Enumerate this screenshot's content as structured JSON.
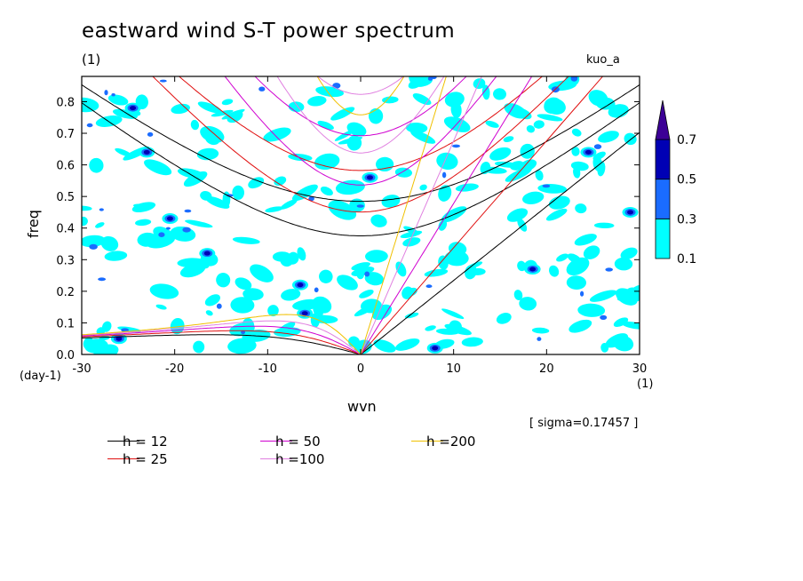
{
  "figure": {
    "title": "eastward wind S-T power spectrum",
    "units_label": "(1)",
    "run_label": "kuo_a",
    "sigma_label": "[ sigma=0.17457 ]",
    "xunits_label": "(1)",
    "yunits_label": "(day-1)"
  },
  "chart_data": {
    "type": "contour",
    "title": "eastward wind S-T power spectrum",
    "xlabel": "wvn",
    "ylabel": "freq",
    "xlim": [
      -30,
      30
    ],
    "ylim": [
      0,
      0.88
    ],
    "x_ticks": [
      -30,
      -20,
      -10,
      0,
      10,
      20,
      30
    ],
    "y_ticks": [
      0.0,
      0.1,
      0.2,
      0.3,
      0.4,
      0.5,
      0.6,
      0.7,
      0.8
    ],
    "colorbar": {
      "levels": [
        0.1,
        0.3,
        0.5,
        0.7
      ],
      "colors": [
        "#00ffff",
        "#1a6cff",
        "#0000b4",
        "#3c0096"
      ],
      "extend": "max"
    },
    "dispersion_curves": [
      {
        "name": "h = 12",
        "h": 12,
        "color": "#000000"
      },
      {
        "name": "h = 25",
        "h": 25,
        "color": "#e01010"
      },
      {
        "name": "h = 50",
        "h": 50,
        "color": "#d000d0"
      },
      {
        "name": "h =100",
        "h": 100,
        "color": "#e080e0"
      },
      {
        "name": "h =200",
        "h": 200,
        "color": "#f0c000"
      }
    ],
    "shaded_regions": [
      {
        "x": -24.5,
        "y": 0.78,
        "level": 0.5
      },
      {
        "x": -6.5,
        "y": 0.22,
        "level": 0.5
      },
      {
        "x": -6.0,
        "y": 0.13,
        "level": 0.5
      },
      {
        "x": 1.0,
        "y": 0.56,
        "level": 0.5
      },
      {
        "x": 8.0,
        "y": 0.02,
        "level": 0.5
      },
      {
        "x": 18.5,
        "y": 0.27,
        "level": 0.5
      },
      {
        "x": 24.5,
        "y": 0.64,
        "level": 0.5
      },
      {
        "x": -20.5,
        "y": 0.43,
        "level": 0.5
      },
      {
        "x": -16.5,
        "y": 0.32,
        "level": 0.5
      },
      {
        "x": -23.0,
        "y": 0.64,
        "level": 0.5
      },
      {
        "x": -26.0,
        "y": 0.05,
        "level": 0.5
      },
      {
        "x": 29.0,
        "y": 0.45,
        "level": 0.5
      }
    ]
  },
  "legend": {
    "items": [
      {
        "label": "h = 12",
        "color": "#000000"
      },
      {
        "label": "h = 25",
        "color": "#e01010"
      },
      {
        "label": "h = 50",
        "color": "#d000d0"
      },
      {
        "label": "h =100",
        "color": "#e080e0"
      },
      {
        "label": "h =200",
        "color": "#f0c000"
      }
    ]
  }
}
